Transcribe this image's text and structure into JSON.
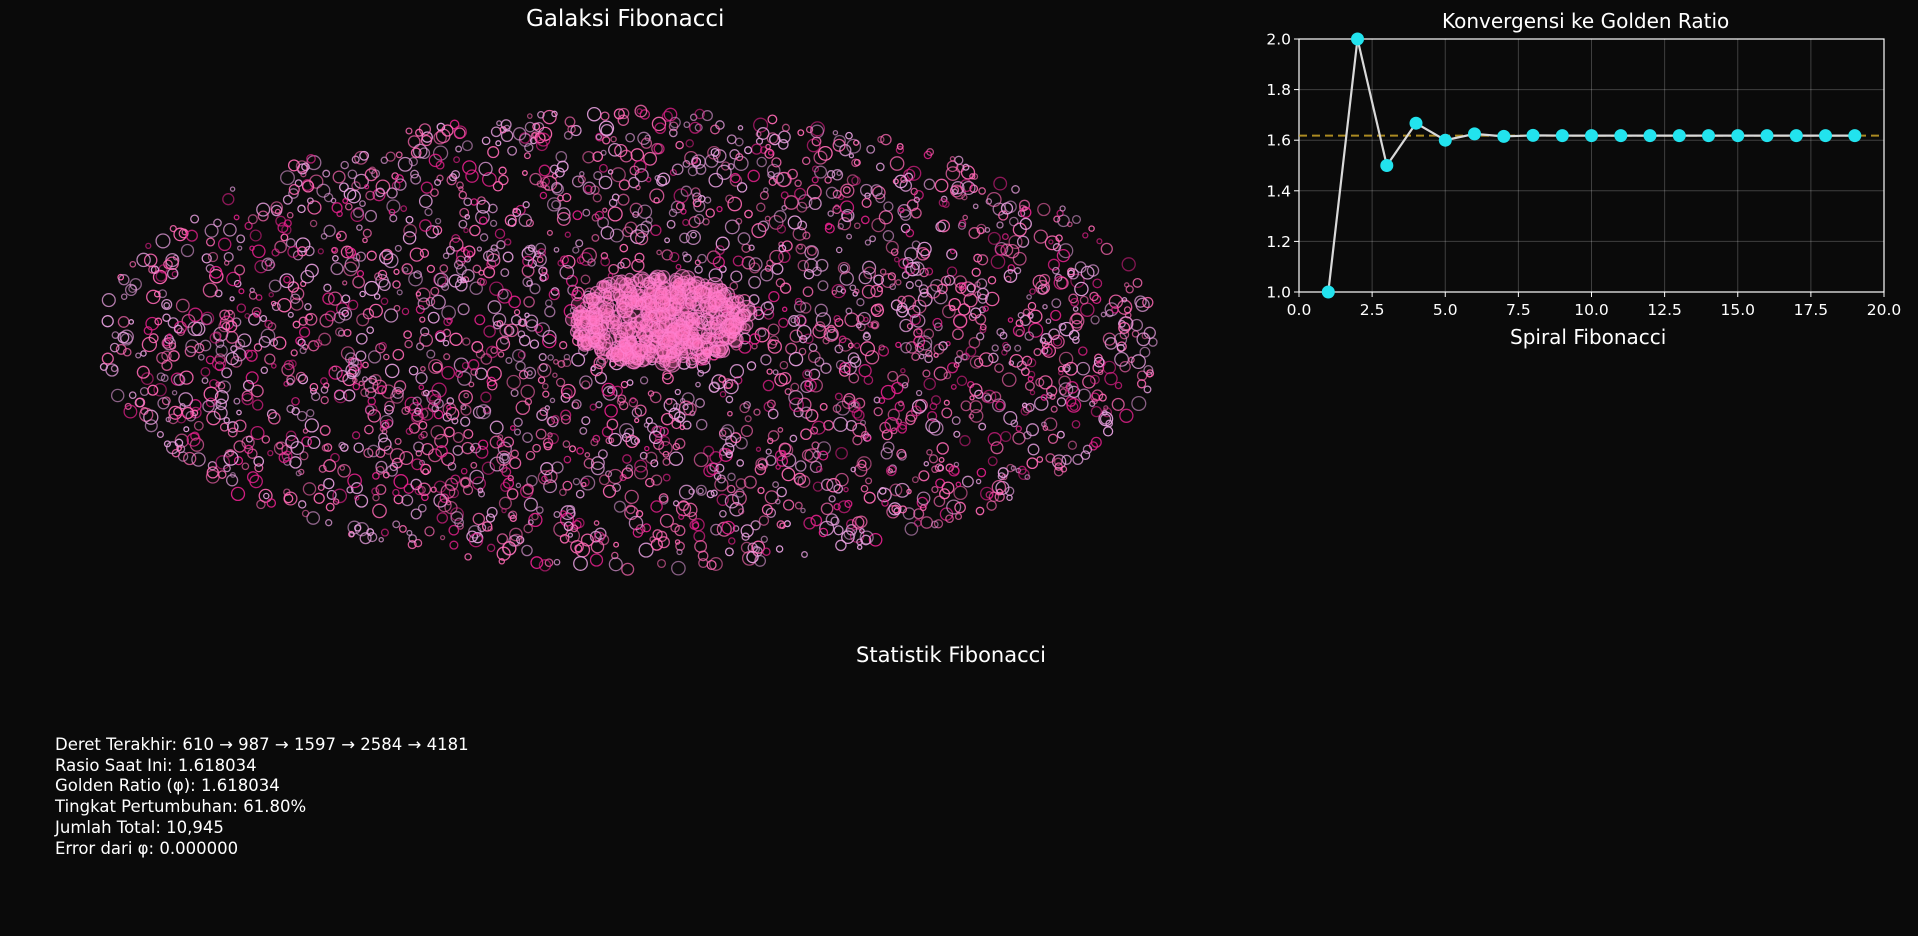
{
  "galaxy": {
    "title": "Galaksi Fibonacci",
    "colors": {
      "pink": "#ff69b4",
      "light": "#e8a0e0",
      "magenta": "#e0208a"
    }
  },
  "chart_data": [
    {
      "type": "scatter",
      "title": "Galaksi Fibonacci",
      "axes_visible": false,
      "note_points": "approx. 3000 hollow circle markers forming an elliptical galaxy, dense pink core at center",
      "colors": [
        "#ff69b4",
        "#e8a0e0",
        "#e0208a"
      ]
    },
    {
      "type": "line",
      "title": "Konvergensi ke Golden Ratio",
      "xlabel": "Spiral Fibonacci",
      "x": [
        1,
        2,
        3,
        4,
        5,
        6,
        7,
        8,
        9,
        10,
        11,
        12,
        13,
        14,
        15,
        16,
        17,
        18,
        19
      ],
      "series": [
        {
          "values": [
            1.0,
            2.0,
            1.5,
            1.667,
            1.6,
            1.625,
            1.615,
            1.619,
            1.618,
            1.618,
            1.618,
            1.618,
            1.618,
            1.618,
            1.618,
            1.618,
            1.618,
            1.618,
            1.618
          ],
          "line_color": "#d9d9d9",
          "marker_color": "#22e3ee"
        }
      ],
      "reference_line": {
        "y": 1.618034,
        "color": "#c9a227",
        "style": "dashed"
      },
      "xlim": [
        0.0,
        20.0
      ],
      "ylim": [
        1.0,
        2.0
      ],
      "xticks": [
        "0.0",
        "2.5",
        "5.0",
        "7.5",
        "10.0",
        "12.5",
        "15.0",
        "17.5",
        "20.0"
      ],
      "yticks": [
        "1.0",
        "1.2",
        "1.4",
        "1.6",
        "1.8",
        "2.0"
      ],
      "grid": true
    }
  ],
  "convergence": {
    "title": "Konvergensi ke Golden Ratio",
    "xlabel": "Spiral Fibonacci"
  },
  "stats": {
    "title": "Statistik Fibonacci",
    "lines": [
      "Deret Terakhir: 610 → 987 → 1597 → 2584 → 4181",
      "Rasio Saat Ini: 1.618034",
      "Golden Ratio (φ): 1.618034",
      "Tingkat Pertumbuhan: 61.80%",
      "Jumlah Total: 10,945",
      "Error dari φ: 0.000000"
    ]
  }
}
